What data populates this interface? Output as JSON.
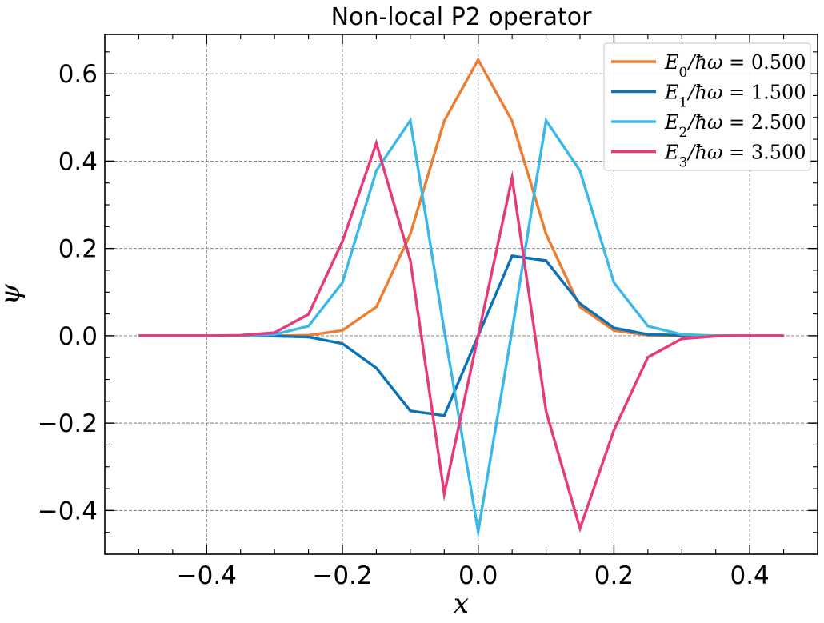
{
  "chart_data": {
    "type": "line",
    "title": "Non-local P2 operator",
    "xlabel": "x",
    "ylabel": "ψ",
    "xlim": [
      -0.55,
      0.5
    ],
    "ylim": [
      -0.5,
      0.69
    ],
    "xticks": [
      -0.4,
      -0.2,
      0.0,
      0.2,
      0.4
    ],
    "xtick_labels": [
      "−0.4",
      "−0.2",
      "0.0",
      "0.2",
      "0.4"
    ],
    "yticks": [
      -0.4,
      -0.2,
      0.0,
      0.2,
      0.4,
      0.6
    ],
    "ytick_labels": [
      "−0.4",
      "−0.2",
      "0.0",
      "0.2",
      "0.4",
      "0.6"
    ],
    "grid": true,
    "legend_position": "top-right",
    "x": [
      -0.5,
      -0.45,
      -0.4,
      -0.35,
      -0.3,
      -0.25,
      -0.2,
      -0.15,
      -0.1,
      -0.05,
      0.0,
      0.05,
      0.1,
      0.15,
      0.2,
      0.25,
      0.3,
      0.35,
      0.4,
      0.45
    ],
    "series": [
      {
        "name": "E0/ħω = 0.500",
        "legend_sub": "0",
        "legend_value": "0.500",
        "color": "#ed7d31",
        "values": [
          0,
          0,
          0,
          0,
          0,
          0.001,
          0.012,
          0.066,
          0.233,
          0.492,
          0.632,
          0.492,
          0.233,
          0.066,
          0.012,
          0.001,
          0,
          0,
          0,
          0
        ]
      },
      {
        "name": "E1/ħω = 1.500",
        "legend_sub": "1",
        "legend_value": "1.500",
        "color": "#0a72b8",
        "values": [
          0,
          0,
          0,
          0,
          -0.001,
          -0.003,
          -0.018,
          -0.074,
          -0.172,
          -0.183,
          0.0,
          0.183,
          0.172,
          0.074,
          0.018,
          0.003,
          0.001,
          0,
          0,
          0
        ]
      },
      {
        "name": "E2/ħω = 2.500",
        "legend_sub": "2",
        "legend_value": "2.500",
        "color": "#3ab9e8",
        "values": [
          0,
          0,
          0,
          0,
          0.003,
          0.022,
          0.122,
          0.378,
          0.493,
          0.012,
          -0.448,
          0.012,
          0.493,
          0.378,
          0.122,
          0.022,
          0.003,
          0,
          0,
          0
        ]
      },
      {
        "name": "E3/ħω = 3.500",
        "legend_sub": "3",
        "legend_value": "3.500",
        "color": "#e8397a",
        "values": [
          0,
          0,
          0,
          0.001,
          0.007,
          0.049,
          0.216,
          0.441,
          0.173,
          -0.362,
          0.0,
          0.362,
          -0.173,
          -0.441,
          -0.216,
          -0.049,
          -0.007,
          -0.001,
          0,
          0
        ]
      }
    ]
  }
}
